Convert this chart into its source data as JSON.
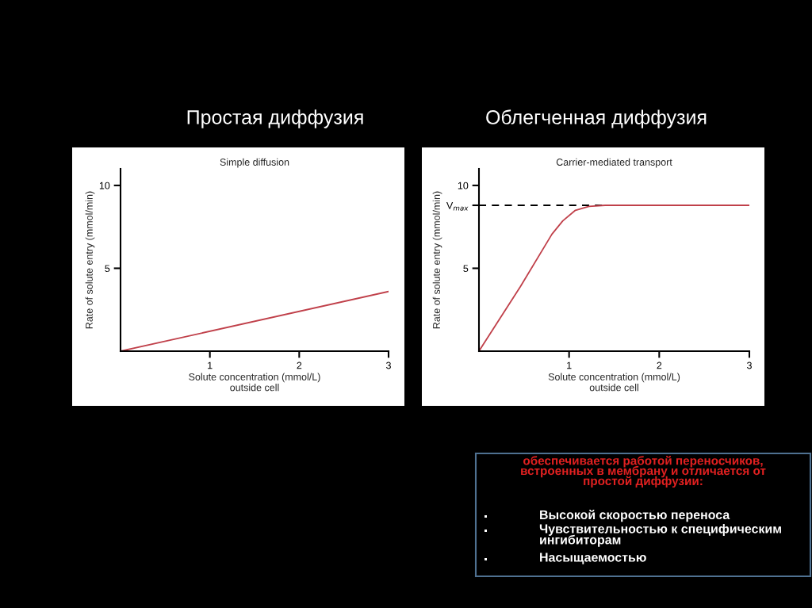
{
  "chart_data": [
    {
      "type": "line",
      "title": "Простая диффузия",
      "subtitle": "Simple diffusion",
      "xlabel": "Solute concentration (mmol/L)\noutside cell",
      "ylabel": "Rate of solute entry (mmol/min)",
      "x": [
        0,
        3
      ],
      "series": [
        {
          "color": "#c0404a",
          "values": [
            0,
            3.6
          ]
        }
      ],
      "xlim": [
        0,
        3
      ],
      "xticks": [
        1,
        2,
        3
      ],
      "ylim": [
        0,
        11
      ],
      "yticks": [
        5,
        10
      ],
      "grid": false
    },
    {
      "type": "line",
      "title": "Облегченная диффузия",
      "subtitle": "Carrier-mediated transport",
      "xlabel": "Solute concentration (mmol/L)\noutside cell",
      "ylabel": "Rate of solute entry (mmol/min)",
      "x": [
        0,
        0.46,
        0.81,
        0.93,
        1.07,
        1.22,
        1.4,
        3
      ],
      "series": [
        {
          "color": "#c0404a",
          "values": [
            0,
            3.9,
            7.06,
            7.86,
            8.5,
            8.73,
            8.8,
            8.8
          ]
        }
      ],
      "xlim": [
        0,
        3
      ],
      "xticks": [
        1,
        2,
        3
      ],
      "ylim": [
        0,
        11
      ],
      "yticks": [
        5,
        {
          "value": 8.8,
          "label": "V$_{max}$"
        },
        10
      ],
      "ref_lines": [
        {
          "axis": "y",
          "value": 8.8,
          "color": "#000000",
          "line_style": "dashed"
        }
      ],
      "grid": false
    },
    {
      "type": "other",
      "title": "обеспечивается работой переносчиков, встроенных в мембрану и отличается от простой диффузии:",
      "annotations": [
        "Высокой скоростью переноса",
        "Чувствительностью к специфическим ингибиторам",
        "Насыщаемостью"
      ]
    }
  ]
}
